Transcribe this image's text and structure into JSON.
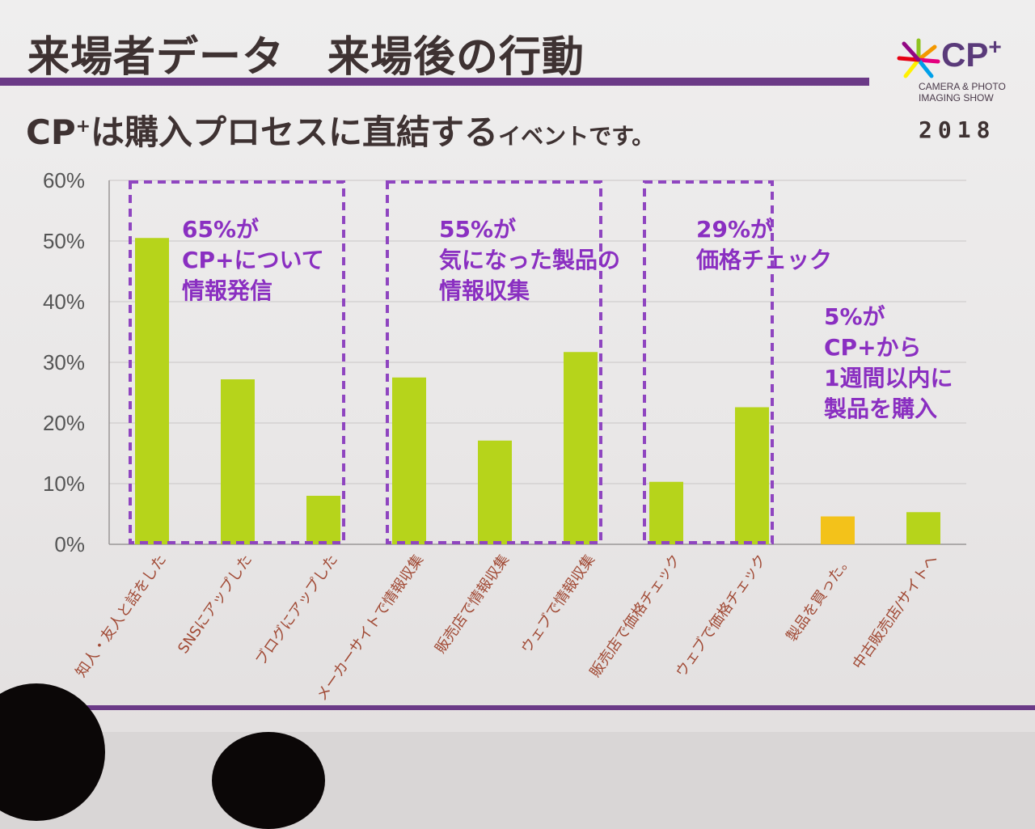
{
  "slide": {
    "title": "来場者データ　来場後の行動",
    "subtitle": {
      "part1": "CP",
      "part2": "+",
      "part3": "は購入プロセスに直結する",
      "part4": "イベントです。"
    }
  },
  "logo": {
    "name": "CP",
    "plus": "+",
    "tagline": "CAMERA & PHOTO IMAGING SHOW",
    "year": "2018"
  },
  "colors": {
    "accent": "#6b3a87",
    "bar": "#b6d41b",
    "bar_highlight": "#f3c21a",
    "annotation_text": "#8a2fc1",
    "annotation_box": "#8f45c0",
    "tick_label": "#a14a35",
    "axis_text": "#555555"
  },
  "chart_data": {
    "type": "bar",
    "categories": [
      "知人・友人と話をした",
      "SNSにアップした",
      "ブログにアップした",
      "メーカーサイトで情報収集",
      "販売店で情報収集",
      "ウェブで情報収集",
      "販売店で価格チェック",
      "ウェブで価格チェック",
      "製品を買った。",
      "中古販売店/サイトへ"
    ],
    "values": [
      50.5,
      27.2,
      8.0,
      27.5,
      17.1,
      31.7,
      10.3,
      22.6,
      4.6,
      5.3
    ],
    "highlight_index": 8,
    "yticks": [
      "0%",
      "10%",
      "20%",
      "30%",
      "40%",
      "50%",
      "60%"
    ],
    "ylim": [
      0,
      60
    ],
    "grid": true,
    "annotations": [
      {
        "lines": [
          "65%が",
          "CP+について",
          "情報発信"
        ],
        "group": [
          0,
          2
        ],
        "boxed": true
      },
      {
        "lines": [
          "55%が",
          "気になった製品の",
          "情報収集"
        ],
        "group": [
          3,
          5
        ],
        "boxed": true
      },
      {
        "lines": [
          "29%が",
          "価格チェック"
        ],
        "group": [
          6,
          7
        ],
        "boxed": true
      },
      {
        "lines": [
          "5%が",
          "CP+から",
          "1週間以内に",
          "製品を購入"
        ],
        "group": [
          8,
          9
        ],
        "boxed": false
      }
    ]
  }
}
